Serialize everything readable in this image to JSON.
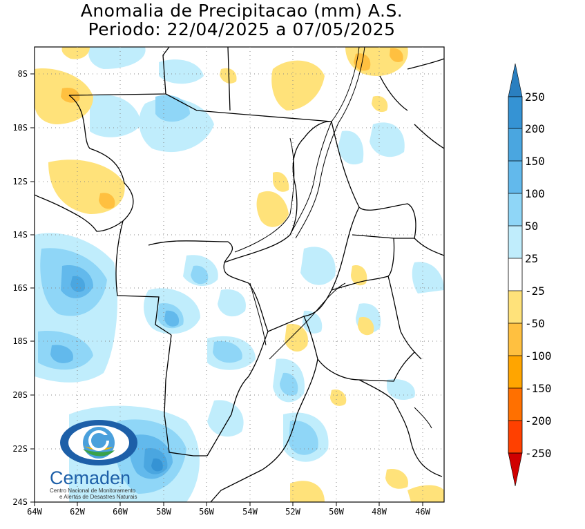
{
  "title_line1": "Anomalia de Precipitacao (mm) A.S.",
  "title_line2": "Periodo: 22/04/2025 a 07/05/2025",
  "x_ticks": [
    "64W",
    "62W",
    "60W",
    "58W",
    "56W",
    "54W",
    "52W",
    "50W",
    "48W",
    "46W"
  ],
  "y_ticks": [
    "8S",
    "10S",
    "12S",
    "14S",
    "16S",
    "18S",
    "20S",
    "22S",
    "24S"
  ],
  "legend": {
    "levels": [
      "250",
      "200",
      "150",
      "100",
      "50",
      "25",
      "-25",
      "-50",
      "-100",
      "-150",
      "-200",
      "-250"
    ],
    "colors": {
      "b250": "#2a7fc0",
      "b200": "#3593d4",
      "b150": "#4aa6e0",
      "b100": "#62b9ec",
      "b50": "#8fd6f7",
      "b25": "#c0edfc",
      "white": "#ffffff",
      "y25": "#ffe27a",
      "y50": "#ffc040",
      "o100": "#ffa500",
      "o150": "#ff7000",
      "r200": "#ff4000",
      "r250": "#d00000"
    }
  },
  "logo": {
    "name": "Cemaden",
    "line1": "Centro Nacional de Monitoramento",
    "line2": "e Alertas de Desastres Naturais"
  }
}
